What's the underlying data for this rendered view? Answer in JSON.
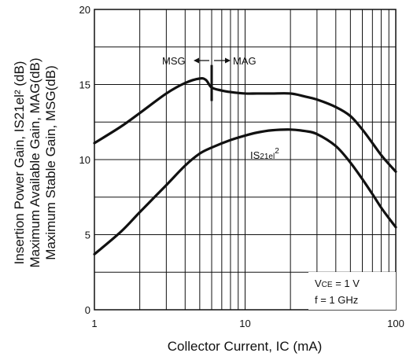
{
  "chart_data": {
    "type": "line",
    "xscale": "log",
    "xlim": [
      1,
      100
    ],
    "ylim": [
      0,
      20
    ],
    "x_ticks": [
      1,
      10,
      100
    ],
    "x_tick_labels": [
      "1",
      "10",
      "100"
    ],
    "y_ticks": [
      0,
      5,
      10,
      15,
      20
    ],
    "y_tick_labels": [
      "0",
      "5",
      "10",
      "15",
      "20"
    ],
    "grid": true,
    "xlabel": "Collector Current, IC (mA)",
    "ylabel_lines": [
      "Insertion Power Gain, IS21el² (dB)",
      "Maximum Available Gain, MAG(dB)",
      "Maximum Stable Gain, MSG(dB)"
    ],
    "series": [
      {
        "name": "MSG / MAG",
        "x": [
          1,
          1.5,
          2,
          3,
          4,
          5,
          5.5,
          6,
          7,
          8,
          10,
          12,
          15,
          20,
          25,
          30,
          40,
          50,
          60,
          70,
          80,
          90,
          100
        ],
        "y": [
          11.1,
          12.2,
          13.1,
          14.4,
          15.1,
          15.4,
          15.3,
          14.8,
          14.6,
          14.5,
          14.4,
          14.4,
          14.4,
          14.4,
          14.2,
          14.0,
          13.5,
          12.9,
          12.0,
          11.1,
          10.3,
          9.7,
          9.2
        ]
      },
      {
        "name": "IS21el²",
        "x": [
          1,
          1.5,
          2,
          3,
          4,
          5,
          6,
          8,
          10,
          12,
          15,
          20,
          25,
          30,
          40,
          50,
          60,
          70,
          80,
          90,
          100
        ],
        "y": [
          3.7,
          5.2,
          6.5,
          8.3,
          9.6,
          10.4,
          10.8,
          11.3,
          11.6,
          11.8,
          11.95,
          12.0,
          11.9,
          11.7,
          10.9,
          9.8,
          8.7,
          7.7,
          6.8,
          6.1,
          5.5
        ]
      }
    ],
    "msg_mag_boundary": {
      "x": 6,
      "y_range": [
        13.9,
        16.3
      ]
    },
    "annotations": {
      "msg_label": "MSG",
      "mag_label": "MAG",
      "s21_label_main": "IS",
      "s21_label_sub": "21el",
      "s21_label_sup": "2",
      "conditions": {
        "vce_v": "V",
        "vce_sub": "CE",
        "vce_rest": " = 1 V",
        "freq": "f = 1 GHz"
      }
    }
  }
}
